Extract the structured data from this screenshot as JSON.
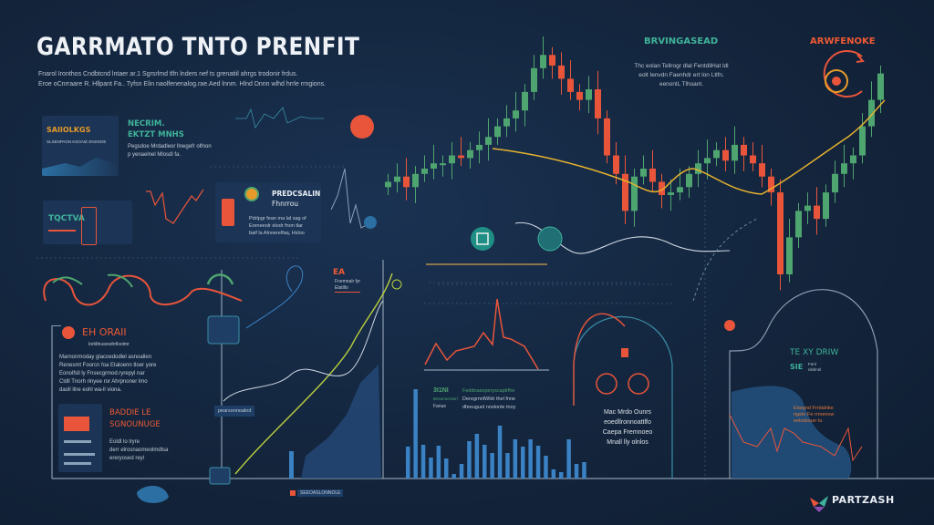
{
  "header": {
    "title": "GARRMATO TNTO PRENFIT",
    "subtitle_line1": "Fnarol Ironthos Cndbtcnd lntaer ar.1 Sgrsrlmd tlfn lnders nef ts grenatiil ahrgs trodonir frdus.",
    "subtitle_line2": "Eroe oCnrraare R. Hllpant Fa.. Tyfsn Elin naolfenenalog.rae.Aed lnnm. Hlnd Dnnn wlhd hrrle rrngions."
  },
  "top_center": {
    "heading": "BRVINGASEAD",
    "text_line1": "Thc eolan Tellrogr dlal FentdilHat ldl",
    "text_line2": "eolt Ienvdn Faenhdr ert lon Ltlfn.",
    "text_line3": "eenonlL Tlhoant."
  },
  "top_right": {
    "heading": "ARWFENOKE",
    "icon": "target-cycle-icon"
  },
  "card_savings": {
    "heading": "SAIIOLKGS",
    "text": "SLSENPAGN KSOAIE ENSNOE"
  },
  "necrim": {
    "heading1": "NECRIM.",
    "heading2": "EKTZT MNHS",
    "text_line1": "Pegsdoe Mrdadleor llnegefr olfnon",
    "text_line2": "p yenaelnel Mlosdl fa."
  },
  "card_tactva": {
    "heading": "TQCTVA"
  },
  "predcsalin": {
    "heading1": "PREDCSALIN",
    "heading2": "Fhnrrou",
    "text_line1": "Pdrlpgr fean ma lal sag of",
    "text_line2": "Ereneeolr elodr fnon tlar",
    "text_line3": "baif la Alnoerelfaq, Hsloo"
  },
  "ea_block": {
    "heading": "EA",
    "text_line1": "Fnemnalr fyr",
    "text_line2": "Elatlllo"
  },
  "eh_block": {
    "heading": "EH  ORAII",
    "subtext": "lorldlnusesdrrlloolmr",
    "lines": [
      "Marnonmoday glacoedodlel asnoallen",
      "Renesmt Foorcn foa Etaloenn tloer yore",
      "Eonolfsll ly Fnsecgrmod.ryrepyl nar",
      "Cldll Tnorh rinyee ror Ahrpnoner lmo",
      "daoll llne eohl wa-ll viona."
    ]
  },
  "boddie": {
    "heading1": "BADDIE LE",
    "heading2": "SGNOUNUGE",
    "text_line1": "Eoldl lo lryre",
    "text_line2": "derr elrosnaomeolmdlsa",
    "text_line3": "ereryosed reyl"
  },
  "mid_tag": "pearsonnoalnd",
  "bars_label": {
    "heading": "3I1NI",
    "side1": "Bnsonnerdorl",
    "side2": "Fanus",
    "text_line1": "Feddnasoperyscaplrfhe",
    "text_line2": "DeregrnnlWldr thel fnne",
    "text_line3": "dfeeuguol nnolonle tnoy"
  },
  "center_note": {
    "line1": "Mac Mrdo Ounrs",
    "line2": "eoedllronnoattlfo",
    "line3": "Caepa Fremnoeo",
    "line4": "Mnall lly olnlos"
  },
  "right_panel": {
    "heading1": "TE XY DRIW",
    "heading2": "SIE",
    "small1": "Fenl",
    "small2": "nlshnnl",
    "orange_line1": "Elargnd Frrdalnke",
    "orange_line2": "ngele Fe rrroenvw",
    "orange_line3": "eeloslouer tu"
  },
  "footer_tag": "SEEOASLONNOLE",
  "brand": {
    "name": "PARTZASH",
    "logo": "partzash-logo"
  },
  "colors": {
    "background": "#13243b",
    "up": "#4fa56f",
    "down": "#e8553a",
    "trend": "#e6b22e",
    "bars": "#3b82c4",
    "teal": "#3fb39a"
  },
  "candles_close": [
    45,
    47,
    43,
    48,
    50,
    52,
    52,
    55,
    54,
    57,
    59,
    62,
    66,
    69,
    72,
    79,
    88,
    93,
    89,
    84,
    79,
    76,
    80,
    69,
    55,
    48,
    34,
    47,
    50,
    45,
    40,
    41,
    43,
    48,
    52,
    54,
    57,
    53,
    59,
    55,
    52,
    47,
    41,
    10,
    24,
    34,
    36,
    31,
    41,
    48,
    52,
    55,
    66,
    76,
    86
  ],
  "candles_first_open": 43,
  "volume_bars": [
    35,
    98,
    37,
    23,
    36,
    22,
    5,
    16,
    41,
    49,
    37,
    28,
    58,
    28,
    43,
    35,
    43,
    36,
    25,
    10,
    7,
    43,
    16,
    18
  ],
  "left_bars": [
    12,
    30,
    18,
    40,
    60,
    48,
    75
  ]
}
